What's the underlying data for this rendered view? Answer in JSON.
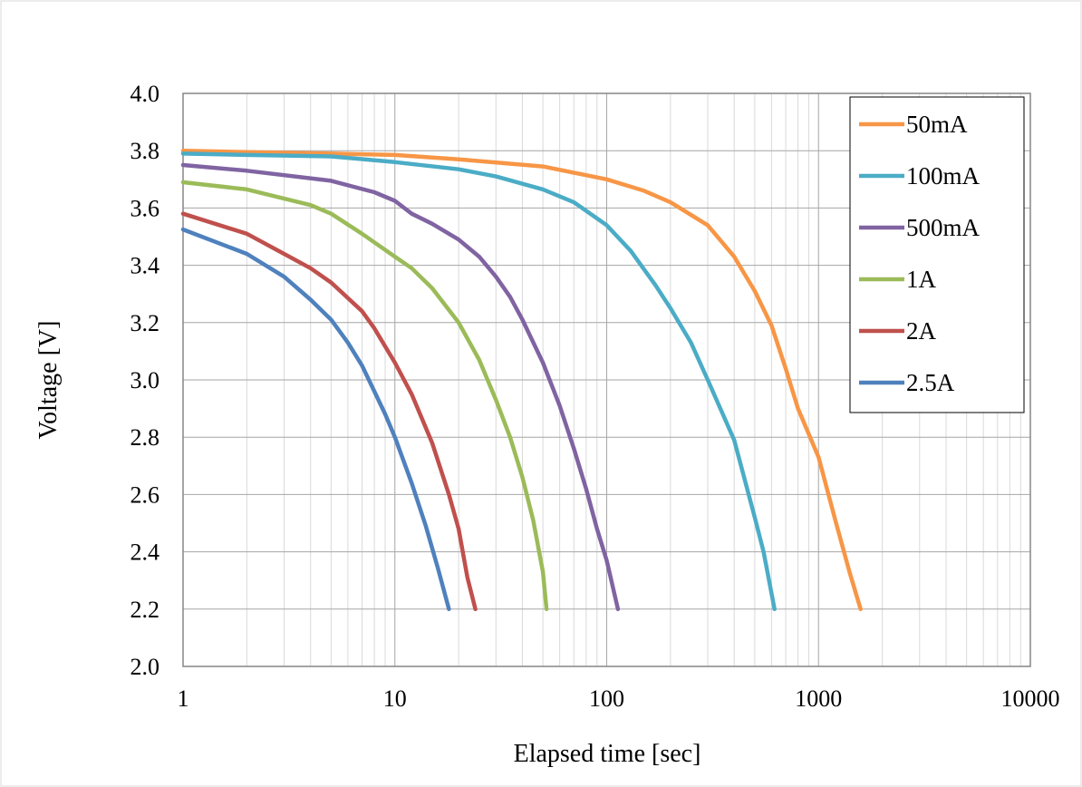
{
  "chart_data": {
    "type": "line",
    "title": "",
    "xlabel": "Elapsed time [sec]",
    "ylabel": "Voltage [V]",
    "xscale": "log",
    "xlim": [
      1,
      10000
    ],
    "ylim": [
      2.0,
      4.0
    ],
    "x_tick_labels": [
      "1",
      "10",
      "100",
      "1000",
      "10000"
    ],
    "y_tick_labels": [
      "2.0",
      "2.2",
      "2.4",
      "2.6",
      "2.8",
      "3.0",
      "3.2",
      "3.4",
      "3.6",
      "3.8",
      "4.0"
    ],
    "grid": true,
    "legend_position": "top-right",
    "series": [
      {
        "name": "50mA",
        "color": "#F79646",
        "points": [
          [
            1,
            3.8
          ],
          [
            2,
            3.795
          ],
          [
            5,
            3.79
          ],
          [
            10,
            3.785
          ],
          [
            20,
            3.77
          ],
          [
            50,
            3.745
          ],
          [
            100,
            3.7
          ],
          [
            150,
            3.66
          ],
          [
            200,
            3.62
          ],
          [
            300,
            3.54
          ],
          [
            400,
            3.43
          ],
          [
            500,
            3.31
          ],
          [
            600,
            3.19
          ],
          [
            700,
            3.04
          ],
          [
            800,
            2.9
          ],
          [
            1000,
            2.73
          ],
          [
            1200,
            2.51
          ],
          [
            1400,
            2.33
          ],
          [
            1580,
            2.2
          ]
        ]
      },
      {
        "name": "100mA",
        "color": "#4BACC6",
        "points": [
          [
            1,
            3.79
          ],
          [
            2,
            3.785
          ],
          [
            5,
            3.78
          ],
          [
            10,
            3.76
          ],
          [
            20,
            3.735
          ],
          [
            30,
            3.71
          ],
          [
            50,
            3.665
          ],
          [
            70,
            3.62
          ],
          [
            100,
            3.54
          ],
          [
            130,
            3.45
          ],
          [
            170,
            3.33
          ],
          [
            200,
            3.25
          ],
          [
            250,
            3.13
          ],
          [
            300,
            3.0
          ],
          [
            400,
            2.79
          ],
          [
            500,
            2.52
          ],
          [
            550,
            2.4
          ],
          [
            620,
            2.2
          ]
        ]
      },
      {
        "name": "500mA",
        "color": "#8064A2",
        "points": [
          [
            1,
            3.75
          ],
          [
            2,
            3.73
          ],
          [
            5,
            3.695
          ],
          [
            8,
            3.655
          ],
          [
            10,
            3.625
          ],
          [
            12,
            3.58
          ],
          [
            15,
            3.545
          ],
          [
            20,
            3.49
          ],
          [
            25,
            3.43
          ],
          [
            30,
            3.36
          ],
          [
            35,
            3.29
          ],
          [
            40,
            3.21
          ],
          [
            50,
            3.06
          ],
          [
            60,
            2.91
          ],
          [
            70,
            2.76
          ],
          [
            80,
            2.62
          ],
          [
            90,
            2.48
          ],
          [
            100,
            2.37
          ],
          [
            113,
            2.2
          ]
        ]
      },
      {
        "name": "1A",
        "color": "#9BBB59",
        "points": [
          [
            1,
            3.69
          ],
          [
            2,
            3.665
          ],
          [
            4,
            3.61
          ],
          [
            5,
            3.58
          ],
          [
            7,
            3.51
          ],
          [
            8,
            3.48
          ],
          [
            10,
            3.43
          ],
          [
            12,
            3.39
          ],
          [
            15,
            3.32
          ],
          [
            20,
            3.2
          ],
          [
            25,
            3.07
          ],
          [
            30,
            2.93
          ],
          [
            35,
            2.8
          ],
          [
            40,
            2.66
          ],
          [
            45,
            2.51
          ],
          [
            50,
            2.33
          ],
          [
            52,
            2.2
          ]
        ]
      },
      {
        "name": "2A",
        "color": "#C0504D",
        "points": [
          [
            1,
            3.58
          ],
          [
            2,
            3.51
          ],
          [
            3,
            3.44
          ],
          [
            4,
            3.39
          ],
          [
            5,
            3.34
          ],
          [
            7,
            3.24
          ],
          [
            8,
            3.18
          ],
          [
            10,
            3.06
          ],
          [
            12,
            2.95
          ],
          [
            15,
            2.78
          ],
          [
            18,
            2.6
          ],
          [
            20,
            2.48
          ],
          [
            22,
            2.31
          ],
          [
            24,
            2.2
          ]
        ]
      },
      {
        "name": "2.5A",
        "color": "#4F81BD",
        "points": [
          [
            1,
            3.525
          ],
          [
            2,
            3.44
          ],
          [
            3,
            3.36
          ],
          [
            4,
            3.28
          ],
          [
            5,
            3.21
          ],
          [
            6,
            3.13
          ],
          [
            7,
            3.05
          ],
          [
            8,
            2.96
          ],
          [
            9,
            2.88
          ],
          [
            10,
            2.8
          ],
          [
            12,
            2.64
          ],
          [
            14,
            2.49
          ],
          [
            16,
            2.34
          ],
          [
            18,
            2.2
          ]
        ]
      }
    ]
  }
}
